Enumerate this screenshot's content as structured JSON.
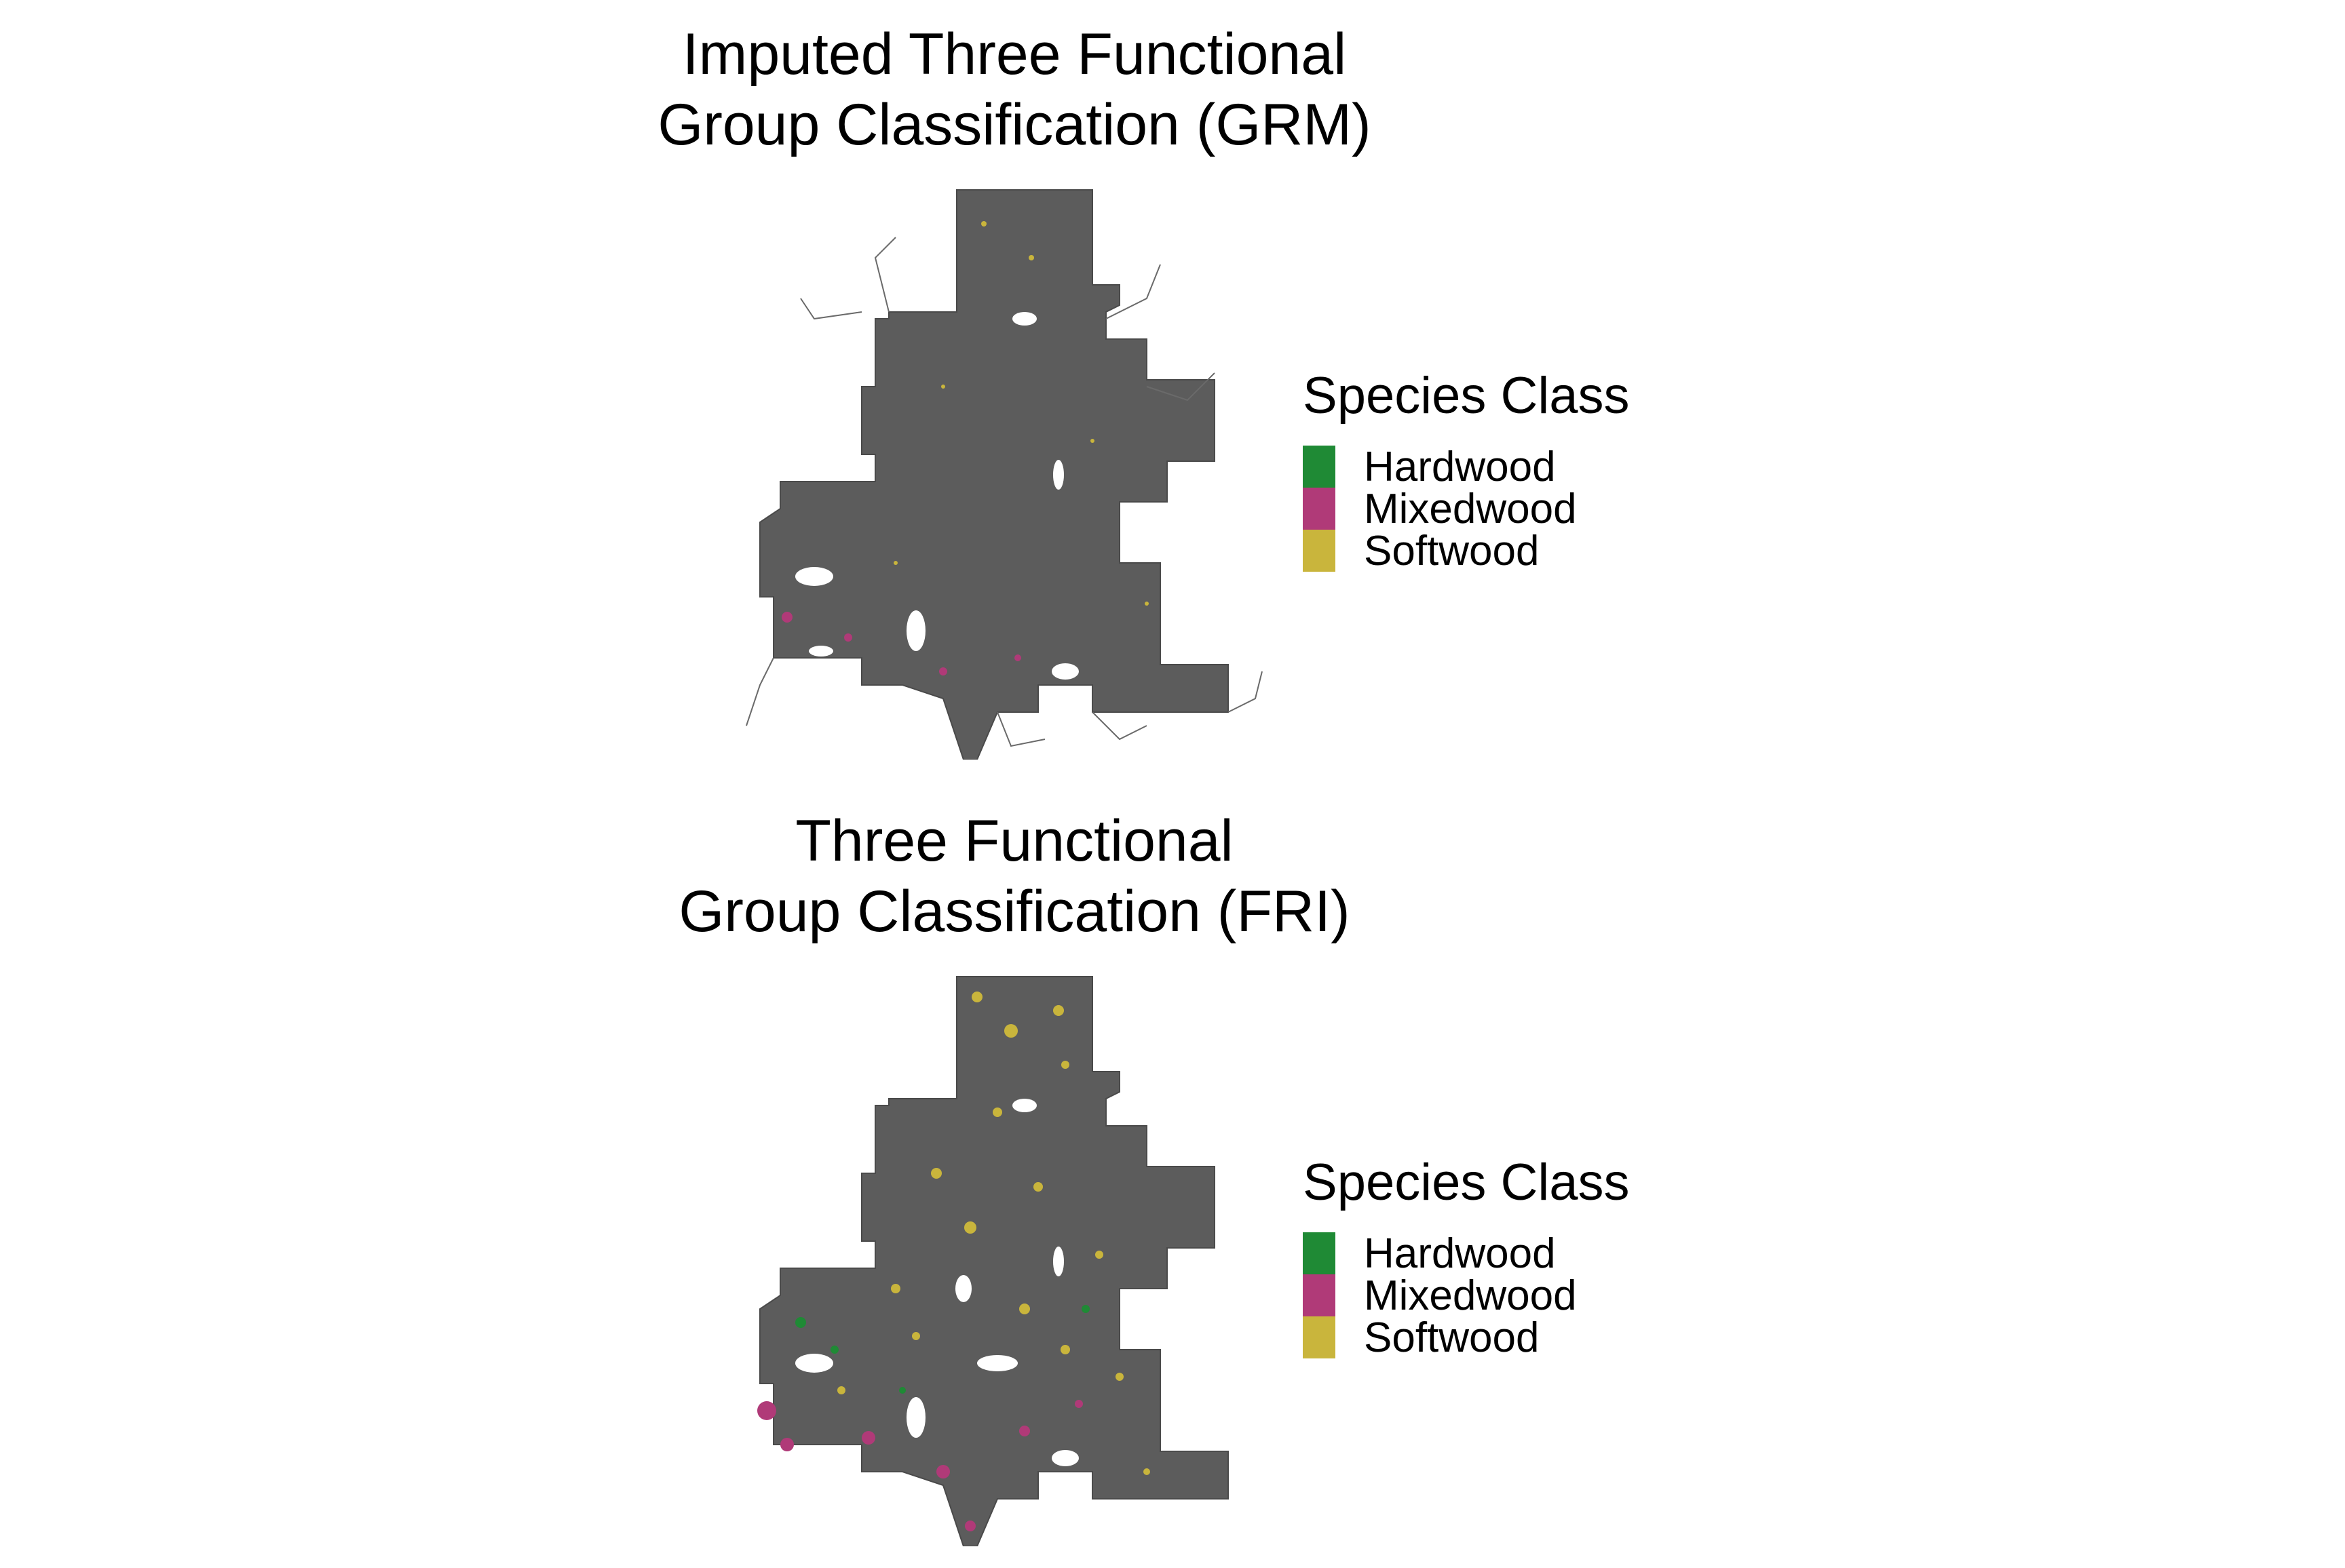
{
  "colors": {
    "background": "#5c5c5c",
    "hardwood": "#1f8a35",
    "mixedwood": "#b03a78",
    "softwood": "#c9b53c",
    "outline": "#4a4a4a"
  },
  "panels": [
    {
      "title_line1": "Imputed Three Functional",
      "title_line2": "Group Classification (GRM)",
      "legend": {
        "title": "Species Class",
        "items": [
          {
            "label": "Hardwood",
            "color": "#1f8a35"
          },
          {
            "label": "Mixedwood",
            "color": "#b03a78"
          },
          {
            "label": "Softwood",
            "color": "#c9b53c"
          }
        ]
      }
    },
    {
      "title_line1": "Three Functional",
      "title_line2": "Group Classification (FRI)",
      "legend": {
        "title": "Species Class",
        "items": [
          {
            "label": "Hardwood",
            "color": "#1f8a35"
          },
          {
            "label": "Mixedwood",
            "color": "#b03a78"
          },
          {
            "label": "Softwood",
            "color": "#c9b53c"
          }
        ]
      }
    }
  ]
}
